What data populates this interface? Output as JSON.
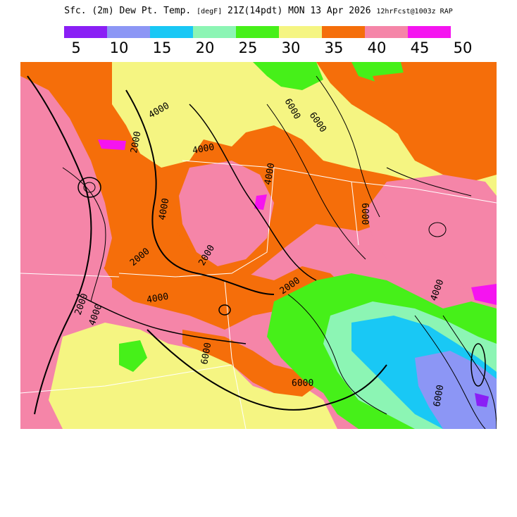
{
  "header": {
    "title_main": "Sfc. (2m) Dew Pt. Temp.",
    "title_units": "[degF]",
    "title_valid": "21Z(14pdt) MON 13 Apr 2026",
    "title_model": "12hrFcst@1003z RAP"
  },
  "legend": {
    "colors": [
      "#8a1ff5",
      "#8c96f5",
      "#19c8f5",
      "#8cf5b4",
      "#46f019",
      "#f5f582",
      "#f56e0a",
      "#f585a8",
      "#f514f0"
    ],
    "labels": [
      "5",
      "10",
      "15",
      "20",
      "25",
      "30",
      "35",
      "40",
      "45",
      "50"
    ]
  },
  "map": {
    "region_colors": {
      "pink": "#f585a8",
      "orange": "#f56e0a",
      "yellow": "#f5f582",
      "green": "#46f019",
      "aqua": "#8cf5b4",
      "cyan": "#19c8f5",
      "blue": "#8c96f5",
      "purple": "#8a1ff5",
      "magenta": "#f514f0"
    },
    "contour_labels": [
      "4000",
      "6000",
      "4000",
      "6000",
      "2000",
      "4000",
      "2000",
      "4000",
      "6000",
      "2000",
      "4000",
      "2000",
      "4000",
      "4000",
      "2000",
      "6000",
      "6000",
      "6000"
    ]
  }
}
